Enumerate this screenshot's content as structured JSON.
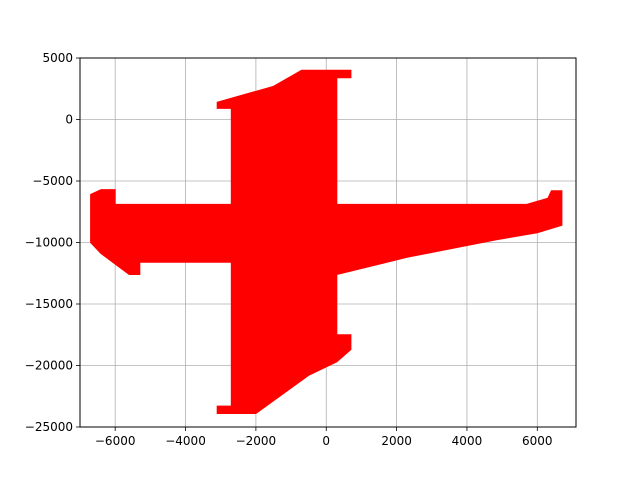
{
  "chart_data": {
    "type": "area",
    "title": "",
    "xlabel": "",
    "ylabel": "",
    "xlim": [
      -7000,
      7100
    ],
    "ylim": [
      -25000,
      5000
    ],
    "grid": true,
    "legend": false,
    "x_ticks": [
      -6000,
      -4000,
      -2000,
      0,
      2000,
      4000,
      6000
    ],
    "y_ticks": [
      5000,
      0,
      -5000,
      -10000,
      -15000,
      -20000,
      -25000
    ],
    "x_tick_labels": [
      "−6000",
      "−4000",
      "−2000",
      "0",
      "2000",
      "4000",
      "6000"
    ],
    "y_tick_labels": [
      "5000",
      "0",
      "−5000",
      "−10000",
      "−15000",
      "−20000",
      "−25000"
    ],
    "series": [
      {
        "fill": "#ff0000",
        "points": [
          [
            -700,
            4000
          ],
          [
            700,
            4000
          ],
          [
            700,
            3400
          ],
          [
            300,
            3400
          ],
          [
            300,
            -6900
          ],
          [
            5700,
            -6900
          ],
          [
            6300,
            -6400
          ],
          [
            6400,
            -5800
          ],
          [
            6700,
            -5800
          ],
          [
            6700,
            -8600
          ],
          [
            6000,
            -9200
          ],
          [
            4800,
            -9800
          ],
          [
            2300,
            -11200
          ],
          [
            300,
            -12600
          ],
          [
            300,
            -17500
          ],
          [
            700,
            -17500
          ],
          [
            700,
            -18700
          ],
          [
            300,
            -19700
          ],
          [
            -500,
            -20800
          ],
          [
            -2000,
            -23900
          ],
          [
            -3100,
            -23900
          ],
          [
            -3100,
            -23300
          ],
          [
            -2700,
            -23300
          ],
          [
            -2700,
            -11600
          ],
          [
            -5300,
            -11600
          ],
          [
            -5300,
            -12600
          ],
          [
            -5600,
            -12600
          ],
          [
            -6400,
            -10900
          ],
          [
            -6700,
            -10000
          ],
          [
            -6700,
            -6100
          ],
          [
            -6400,
            -5700
          ],
          [
            -6000,
            -5700
          ],
          [
            -6000,
            -6900
          ],
          [
            -2700,
            -6900
          ],
          [
            -2700,
            900
          ],
          [
            -3100,
            900
          ],
          [
            -3100,
            1400
          ],
          [
            -1500,
            2700
          ]
        ]
      }
    ]
  }
}
